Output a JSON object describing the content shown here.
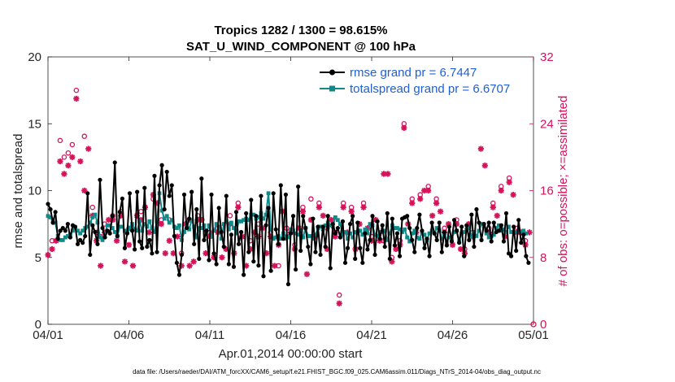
{
  "chart_data": {
    "type": "line",
    "title": "Tropics 1282 / 1300 = 98.615%",
    "subtitle": "SAT_U_WIND_COMPONENT @ 100 hPa",
    "xlabel": "Apr.01,2014 00:00:00 start",
    "ylabel": "rmse and totalspread",
    "ylabel_right": "# of obs: o=possible; ×=assimilated",
    "xlim": [
      0,
      30
    ],
    "ylim": [
      0,
      20
    ],
    "ylim_right": [
      0,
      32
    ],
    "x_ticks": [
      0,
      5,
      10,
      15,
      20,
      25,
      30
    ],
    "x_tick_labels": [
      "04/01",
      "04/06",
      "04/11",
      "04/16",
      "04/21",
      "04/26",
      "05/01"
    ],
    "y_ticks": [
      0,
      5,
      10,
      15,
      20
    ],
    "y_tick_labels": [
      "0",
      "5",
      "10",
      "15",
      "20"
    ],
    "y_ticks_right": [
      0,
      8,
      16,
      24,
      32
    ],
    "y_tick_labels_right": [
      "0",
      "8",
      "16",
      "24",
      "32"
    ],
    "footnote": "data file: /Users/raeder/DAI/ATM_forcXX/CAM6_setup/f.e21.FHIST_BGC.f09_025.CAM6assim.011/Diags_NTrS_2014-04/obs_diag_output.nc",
    "legend": {
      "placement": "top-right",
      "entries": [
        "rmse grand pr = 6.7447",
        "totalspread grand pr = 6.6707"
      ]
    },
    "colors": {
      "rmse": "#000000",
      "spread": "#0f8a8a",
      "obs": "#d6125a",
      "legend_text": "#1f5fd6"
    },
    "series": [
      {
        "name": "rmse",
        "legend": "rmse grand pr = 6.7447",
        "values": [
          9.0,
          8.6,
          7.6,
          8.4,
          6.4,
          7.0,
          7.2,
          7.0,
          7.5,
          6.5,
          7.4,
          7.3,
          6.0,
          6.3,
          6.1,
          6.6,
          9.8,
          5.2,
          7.4,
          6.9,
          6.0,
          10.8,
          7.2,
          6.5,
          7.0,
          6.8,
          8.1,
          12.1,
          6.6,
          8.4,
          9.4,
          5.7,
          6.8,
          9.8,
          7.0,
          5.6,
          9.9,
          6.2,
          5.7,
          10.2,
          5.8,
          6.3,
          5.3,
          11.1,
          5.4,
          10.4,
          11.9,
          8.6,
          11.4,
          9.6,
          10.4,
          6.6,
          4.6,
          3.7,
          5.2,
          9.7,
          7.2,
          7.9,
          9.9,
          6.0,
          8.6,
          4.9,
          10.9,
          6.3,
          7.0,
          4.8,
          9.7,
          5.3,
          4.5,
          8.7,
          6.9,
          5.8,
          9.6,
          4.5,
          6.7,
          4.3,
          8.4,
          6.0,
          6.9,
          3.7,
          8.3,
          5.4,
          9.3,
          4.7,
          8.1,
          4.4,
          9.6,
          3.6,
          7.4,
          8.7,
          4.0,
          9.8,
          7.1,
          6.0,
          10.4,
          6.4,
          9.7,
          3.0,
          6.8,
          8.1,
          4.1,
          10.3,
          5.5,
          8.1,
          7.2,
          5.8,
          4.5,
          7.9,
          5.4,
          7.3,
          5.2,
          7.3,
          5.8,
          8.1,
          4.2,
          7.5,
          6.8,
          7.2,
          6.5,
          7.7,
          4.6,
          5.7,
          7.5,
          8.1,
          4.9,
          7.6,
          5.7,
          4.6,
          6.8,
          5.6,
          6.3,
          8.1,
          5.2,
          7.7,
          6.4,
          7.4,
          5.8,
          8.3,
          4.9,
          7.9,
          5.9,
          6.8,
          5.1,
          7.9,
          8.0,
          8.1,
          7.2,
          6.3,
          5.4,
          7.2,
          8.2,
          7.0,
          5.7,
          6.4,
          5.1,
          7.6,
          6.8,
          6.3,
          7.6,
          5.4,
          6.9,
          5.9,
          7.3,
          6.2,
          7.8,
          7.0,
          6.1,
          7.3,
          5.1,
          7.4,
          6.3,
          8.2,
          5.8,
          8.6,
          7.6,
          6.3,
          7.5,
          7.0,
          7.6,
          6.2,
          7.6,
          6.9,
          7.0,
          7.4,
          6.2,
          8.3,
          5.3,
          5.1,
          7.3,
          5.5,
          7.8,
          6.1,
          6.7,
          5.1,
          4.6
        ],
        "x_start": 0,
        "x_step": 0.15306
      },
      {
        "name": "totalspread",
        "legend": "totalspread grand pr = 6.6707",
        "values": [
          8.1,
          8.0,
          7.8,
          7.6,
          6.6,
          6.3,
          6.3,
          6.5,
          6.6,
          6.7,
          7.0,
          7.2,
          7.0,
          6.8,
          7.0,
          7.2,
          7.3,
          7.6,
          8.0,
          8.2,
          7.6,
          6.5,
          6.3,
          6.8,
          7.4,
          7.4,
          7.2,
          6.9,
          6.6,
          7.3,
          7.3,
          7.0,
          7.0,
          7.2,
          7.5,
          7.1,
          7.0,
          7.7,
          7.0,
          7.5,
          7.3,
          7.7,
          7.2,
          6.9,
          7.7,
          9.8,
          8.5,
          7.9,
          8.1,
          7.6,
          7.8,
          7.3,
          7.2,
          7.4,
          6.3,
          6.9,
          7.6,
          7.1,
          7.8,
          7.3,
          6.5,
          7.2,
          7.2,
          7.4,
          6.9,
          7.4,
          6.6,
          7.0,
          7.5,
          7.3,
          6.4,
          7.5,
          7.7,
          7.1,
          7.6,
          7.2,
          6.8,
          7.7,
          7.7,
          7.8,
          7.9,
          7.8,
          8.2,
          8.2,
          7.9,
          8.0,
          8.3,
          7.9,
          8.2,
          9.8,
          7.1,
          6.4,
          6.5,
          6.6,
          6.4,
          6.8,
          6.4,
          6.5,
          7.1,
          7.0,
          6.8,
          6.7,
          7.0,
          6.5,
          7.2,
          6.6,
          6.6,
          6.4,
          6.7,
          7.2,
          7.3,
          7.1,
          7.4,
          7.6,
          7.4,
          7.3,
          8.0,
          7.8,
          7.5,
          6.7,
          6.9,
          6.4,
          6.8,
          6.5,
          6.9,
          6.8,
          7.0,
          6.7,
          7.1,
          6.8,
          7.5,
          7.4,
          6.7,
          6.6,
          6.9,
          6.9,
          7.0,
          6.3,
          6.8,
          7.4,
          7.2,
          7.2,
          7.1,
          6.9,
          7.1,
          6.5,
          6.2,
          6.8,
          7.0,
          6.5,
          6.4,
          6.9,
          6.7,
          6.3,
          6.8,
          7.0,
          6.8,
          7.2,
          7.0,
          6.4,
          6.6,
          6.1,
          6.5,
          6.4,
          6.9,
          7.0,
          6.2,
          6.8,
          6.9,
          7.1,
          7.2,
          6.6,
          6.9,
          6.6,
          7.0,
          7.5,
          7.3,
          6.8,
          6.5,
          6.6,
          6.7,
          7.2,
          7.4,
          7.0,
          7.1,
          6.9,
          7.3,
          6.9,
          6.9,
          6.9,
          7.0,
          6.9,
          7.0,
          6.8
        ],
        "x_start": 0,
        "x_step": 0.15306
      }
    ],
    "obs_assimilated": {
      "name": "# of obs assimilated",
      "axis": "right",
      "points": [
        [
          0,
          8.3
        ],
        [
          0.25,
          9.0
        ],
        [
          0.5,
          10.0
        ],
        [
          0.75,
          19.5
        ],
        [
          1.0,
          18.0
        ],
        [
          1.25,
          19.0
        ],
        [
          1.5,
          20.0
        ],
        [
          1.75,
          27.0
        ],
        [
          2.0,
          19.5
        ],
        [
          2.25,
          16.0
        ],
        [
          2.5,
          21.0
        ],
        [
          2.75,
          13.0
        ],
        [
          3.0,
          10.0
        ],
        [
          3.25,
          7.0
        ],
        [
          3.5,
          11.0
        ],
        [
          3.75,
          12.5
        ],
        [
          4.0,
          12.5
        ],
        [
          4.25,
          10.0
        ],
        [
          4.5,
          13.0
        ],
        [
          4.75,
          7.5
        ],
        [
          5.0,
          9.5
        ],
        [
          5.25,
          7.0
        ],
        [
          5.5,
          13.0
        ],
        [
          5.75,
          12.5
        ],
        [
          6.0,
          14.0
        ],
        [
          6.25,
          11.0
        ],
        [
          6.5,
          15.5
        ],
        [
          6.75,
          14.5
        ],
        [
          7.0,
          12.0
        ],
        [
          7.25,
          8.5
        ],
        [
          7.5,
          10.0
        ],
        [
          7.75,
          8.5
        ],
        [
          8.0,
          10.5
        ],
        [
          8.25,
          7.0
        ],
        [
          8.5,
          12.0
        ],
        [
          8.75,
          7.0
        ],
        [
          9.0,
          7.5
        ],
        [
          9.25,
          12.5
        ],
        [
          9.5,
          12.5
        ],
        [
          9.75,
          8.5
        ],
        [
          10.0,
          10.5
        ],
        [
          10.25,
          8.0
        ],
        [
          10.5,
          11.0
        ],
        [
          10.75,
          8.0
        ],
        [
          11.0,
          9.0
        ],
        [
          11.25,
          12.0
        ],
        [
          11.5,
          8.5
        ],
        [
          11.75,
          14.0
        ],
        [
          12.0,
          10.5
        ],
        [
          12.25,
          7.0
        ],
        [
          12.5,
          9.0
        ],
        [
          12.75,
          11.0
        ],
        [
          13.0,
          10.5
        ],
        [
          13.25,
          11.5
        ],
        [
          13.5,
          8.5
        ],
        [
          13.75,
          10.5
        ],
        [
          14.0,
          7.0
        ],
        [
          14.25,
          9.5
        ],
        [
          14.5,
          13.5
        ],
        [
          14.75,
          10.5
        ],
        [
          15.0,
          11.0
        ],
        [
          15.25,
          9.0
        ],
        [
          15.5,
          11.5
        ],
        [
          15.75,
          13.5
        ],
        [
          16.0,
          6.0
        ],
        [
          16.25,
          12.5
        ],
        [
          16.5,
          10.5
        ],
        [
          16.75,
          14.0
        ],
        [
          17.0,
          13.0
        ],
        [
          17.25,
          9.0
        ],
        [
          17.5,
          12.5
        ],
        [
          17.75,
          10.5
        ],
        [
          18.0,
          2.5
        ],
        [
          18.25,
          14.0
        ],
        [
          18.5,
          11.0
        ],
        [
          18.75,
          13.5
        ],
        [
          19.0,
          9.0
        ],
        [
          19.25,
          12.0
        ],
        [
          19.5,
          14.0
        ],
        [
          19.75,
          11.5
        ],
        [
          20.0,
          10.0
        ],
        [
          20.25,
          12.5
        ],
        [
          20.5,
          10.0
        ],
        [
          20.75,
          18.0
        ],
        [
          21.0,
          18.0
        ],
        [
          21.25,
          7.5
        ],
        [
          21.5,
          9.0
        ],
        [
          21.75,
          9.5
        ],
        [
          22.0,
          23.5
        ],
        [
          22.25,
          12.0
        ],
        [
          22.5,
          14.5
        ],
        [
          22.75,
          11.0
        ],
        [
          23.0,
          15.0
        ],
        [
          23.25,
          16.0
        ],
        [
          23.5,
          16.0
        ],
        [
          23.75,
          13.0
        ],
        [
          24.0,
          14.5
        ],
        [
          24.25,
          13.5
        ],
        [
          24.5,
          11.0
        ],
        [
          24.75,
          12.0
        ],
        [
          25.0,
          9.5
        ],
        [
          25.25,
          12.0
        ],
        [
          25.5,
          9.0
        ],
        [
          25.75,
          8.5
        ],
        [
          26.0,
          12.0
        ],
        [
          26.25,
          10.5
        ],
        [
          26.75,
          21.0
        ],
        [
          27.0,
          19.0
        ],
        [
          27.25,
          11.0
        ],
        [
          27.5,
          14.0
        ],
        [
          27.75,
          13.0
        ],
        [
          28.0,
          16.0
        ],
        [
          28.25,
          10.5
        ],
        [
          28.5,
          17.0
        ],
        [
          28.75,
          15.5
        ],
        [
          29.0,
          11.0
        ],
        [
          29.25,
          11.0
        ],
        [
          29.5,
          9.5
        ],
        [
          29.75,
          11.0
        ]
      ]
    },
    "obs_possible": {
      "name": "# of obs possible",
      "axis": "right",
      "points": [
        [
          0.25,
          10.0
        ],
        [
          0.75,
          22.0
        ],
        [
          1.0,
          20.0
        ],
        [
          1.25,
          20.5
        ],
        [
          1.5,
          21.5
        ],
        [
          1.75,
          28.0
        ],
        [
          2.25,
          22.5
        ],
        [
          2.75,
          14.0
        ],
        [
          3.0,
          11.0
        ],
        [
          3.25,
          10.5
        ],
        [
          3.5,
          12.0
        ],
        [
          4.0,
          13.0
        ],
        [
          4.5,
          13.5
        ],
        [
          5.0,
          11.5
        ],
        [
          5.75,
          13.5
        ],
        [
          6.5,
          15.0
        ],
        [
          7.0,
          12.5
        ],
        [
          7.5,
          12.5
        ],
        [
          8.25,
          8.5
        ],
        [
          8.75,
          12.5
        ],
        [
          9.25,
          13.0
        ],
        [
          10.0,
          11.0
        ],
        [
          10.5,
          11.5
        ],
        [
          11.25,
          13.0
        ],
        [
          11.75,
          14.5
        ],
        [
          12.5,
          10.0
        ],
        [
          13.0,
          12.0
        ],
        [
          13.75,
          11.0
        ],
        [
          14.25,
          7.0
        ],
        [
          14.75,
          11.5
        ],
        [
          15.25,
          9.5
        ],
        [
          15.75,
          14.0
        ],
        [
          16.25,
          15.0
        ],
        [
          16.75,
          14.5
        ],
        [
          17.25,
          11.5
        ],
        [
          17.75,
          11.0
        ],
        [
          18.0,
          3.5
        ],
        [
          18.25,
          14.5
        ],
        [
          18.75,
          14.0
        ],
        [
          19.5,
          14.5
        ],
        [
          20.0,
          10.5
        ],
        [
          20.75,
          10.0
        ],
        [
          21.25,
          8.0
        ],
        [
          21.75,
          10.0
        ],
        [
          22.0,
          24.0
        ],
        [
          22.5,
          15.0
        ],
        [
          23.0,
          15.5
        ],
        [
          23.5,
          16.5
        ],
        [
          24.0,
          15.0
        ],
        [
          24.5,
          11.5
        ],
        [
          25.25,
          12.5
        ],
        [
          25.75,
          9.0
        ],
        [
          26.25,
          11.0
        ],
        [
          27.25,
          11.5
        ],
        [
          27.5,
          14.5
        ],
        [
          28.0,
          16.5
        ],
        [
          28.5,
          17.5
        ],
        [
          29.0,
          11.5
        ],
        [
          29.5,
          10.0
        ]
      ]
    }
  }
}
